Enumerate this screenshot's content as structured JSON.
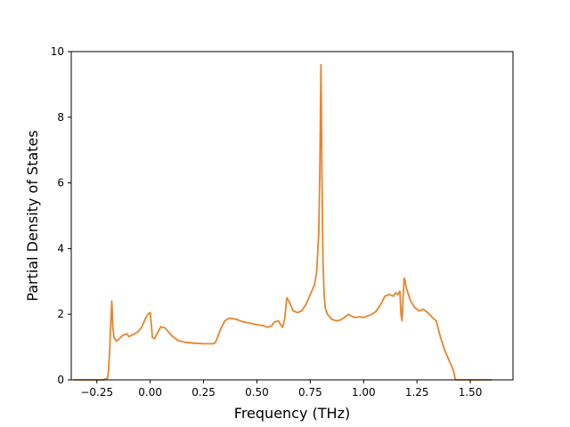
{
  "chart_data": {
    "type": "line",
    "title": "",
    "xlabel": "Frequency (THz)",
    "ylabel": "Partial Density of States",
    "xlim": [
      -0.37,
      1.7
    ],
    "ylim": [
      0,
      10
    ],
    "x_ticks": [
      -0.25,
      0.0,
      0.25,
      0.5,
      0.75,
      1.0,
      1.25,
      1.5
    ],
    "x_tick_labels": [
      "−0.25",
      "0.00",
      "0.25",
      "0.50",
      "0.75",
      "1.00",
      "1.25",
      "1.50"
    ],
    "y_ticks": [
      0,
      2,
      4,
      6,
      8,
      10
    ],
    "y_tick_labels": [
      "0",
      "2",
      "4",
      "6",
      "8",
      "10"
    ],
    "grid": false,
    "legend": "none",
    "series": [
      {
        "color": "#e8842a",
        "x": [
          -0.36,
          -0.22,
          -0.2,
          -0.195,
          -0.19,
          -0.185,
          -0.18,
          -0.175,
          -0.17,
          -0.16,
          -0.15,
          -0.13,
          -0.11,
          -0.1,
          -0.08,
          -0.06,
          -0.04,
          -0.02,
          -0.01,
          0.0,
          0.005,
          0.01,
          0.02,
          0.04,
          0.05,
          0.07,
          0.1,
          0.13,
          0.16,
          0.2,
          0.25,
          0.28,
          0.3,
          0.31,
          0.33,
          0.35,
          0.37,
          0.4,
          0.43,
          0.47,
          0.5,
          0.53,
          0.55,
          0.57,
          0.58,
          0.6,
          0.62,
          0.63,
          0.64,
          0.65,
          0.67,
          0.69,
          0.71,
          0.73,
          0.75,
          0.77,
          0.78,
          0.79,
          0.795,
          0.8,
          0.805,
          0.81,
          0.815,
          0.82,
          0.83,
          0.85,
          0.87,
          0.89,
          0.91,
          0.93,
          0.94,
          0.96,
          0.98,
          1.0,
          1.02,
          1.04,
          1.06,
          1.08,
          1.1,
          1.12,
          1.14,
          1.15,
          1.16,
          1.17,
          1.175,
          1.18,
          1.185,
          1.19,
          1.195,
          1.2,
          1.22,
          1.24,
          1.26,
          1.28,
          1.3,
          1.33,
          1.34,
          1.36,
          1.38,
          1.4,
          1.42,
          1.43,
          1.45,
          1.6
        ],
        "y": [
          0.0,
          0.0,
          0.05,
          0.3,
          0.9,
          1.7,
          2.4,
          1.6,
          1.3,
          1.18,
          1.22,
          1.35,
          1.4,
          1.32,
          1.38,
          1.45,
          1.6,
          1.9,
          2.0,
          2.05,
          1.7,
          1.3,
          1.25,
          1.5,
          1.62,
          1.58,
          1.35,
          1.2,
          1.15,
          1.12,
          1.1,
          1.1,
          1.1,
          1.2,
          1.55,
          1.8,
          1.88,
          1.85,
          1.78,
          1.72,
          1.68,
          1.65,
          1.6,
          1.65,
          1.75,
          1.8,
          1.6,
          1.85,
          2.5,
          2.4,
          2.1,
          2.05,
          2.1,
          2.3,
          2.6,
          2.9,
          3.3,
          4.5,
          6.5,
          9.6,
          6.0,
          3.5,
          2.6,
          2.2,
          2.0,
          1.85,
          1.8,
          1.82,
          1.9,
          2.0,
          1.95,
          1.9,
          1.92,
          1.9,
          1.95,
          2.0,
          2.1,
          2.3,
          2.55,
          2.6,
          2.55,
          2.65,
          2.6,
          2.7,
          2.0,
          1.8,
          2.5,
          3.1,
          3.0,
          2.8,
          2.4,
          2.2,
          2.1,
          2.15,
          2.05,
          1.85,
          1.8,
          1.3,
          0.9,
          0.6,
          0.3,
          0.0,
          0.0,
          0.0
        ]
      }
    ]
  }
}
